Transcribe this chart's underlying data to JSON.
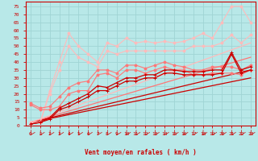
{
  "xlabel": "Vent moyen/en rafales ( km/h )",
  "xlim": [
    -0.5,
    23.5
  ],
  "ylim": [
    0,
    78
  ],
  "xticks": [
    0,
    1,
    2,
    3,
    4,
    5,
    6,
    7,
    8,
    9,
    10,
    11,
    12,
    13,
    14,
    15,
    16,
    17,
    18,
    19,
    20,
    21,
    22,
    23
  ],
  "yticks": [
    0,
    5,
    10,
    15,
    20,
    25,
    30,
    35,
    40,
    45,
    50,
    55,
    60,
    65,
    70,
    75
  ],
  "bg_color": "#b8e8e8",
  "grid_color": "#a0d4d4",
  "dark": "#cc0000",
  "mid": "#ff7777",
  "light": "#ffbbbb",
  "x_vals": [
    0,
    1,
    2,
    3,
    4,
    5,
    6,
    7,
    8,
    9,
    10,
    11,
    12,
    13,
    14,
    15,
    16,
    17,
    18,
    19,
    20,
    21,
    22,
    23
  ],
  "line_dark1": [
    1,
    2,
    4,
    10,
    12,
    15,
    18,
    22,
    22,
    25,
    28,
    28,
    30,
    30,
    33,
    33,
    32,
    32,
    32,
    32,
    33,
    45,
    33,
    35
  ],
  "line_dark2": [
    1,
    2,
    5,
    11,
    14,
    17,
    20,
    25,
    24,
    27,
    30,
    30,
    32,
    32,
    35,
    35,
    34,
    34,
    34,
    35,
    35,
    46,
    35,
    37
  ],
  "line_mid1": [
    13,
    10,
    10,
    12,
    20,
    22,
    22,
    32,
    33,
    30,
    35,
    35,
    33,
    35,
    37,
    35,
    35,
    32,
    32,
    33,
    33,
    33,
    32,
    35
  ],
  "line_mid2": [
    14,
    11,
    12,
    18,
    24,
    27,
    28,
    35,
    35,
    33,
    38,
    38,
    36,
    38,
    40,
    38,
    37,
    35,
    35,
    37,
    37,
    37,
    35,
    38
  ],
  "line_light1": [
    2,
    2,
    20,
    35,
    50,
    43,
    40,
    37,
    47,
    45,
    47,
    47,
    47,
    47,
    47,
    47,
    47,
    50,
    50,
    50,
    52,
    57,
    52,
    57
  ],
  "line_light2": [
    2,
    2,
    22,
    40,
    58,
    50,
    45,
    40,
    52,
    50,
    55,
    52,
    53,
    52,
    53,
    52,
    53,
    55,
    58,
    55,
    65,
    75,
    75,
    65
  ],
  "trend_dark1": [
    0,
    23,
    2,
    30
  ],
  "trend_dark2": [
    0,
    23,
    2,
    35
  ],
  "trend_mid": [
    0,
    23,
    2,
    43
  ],
  "trend_light": [
    0,
    23,
    2,
    52
  ]
}
